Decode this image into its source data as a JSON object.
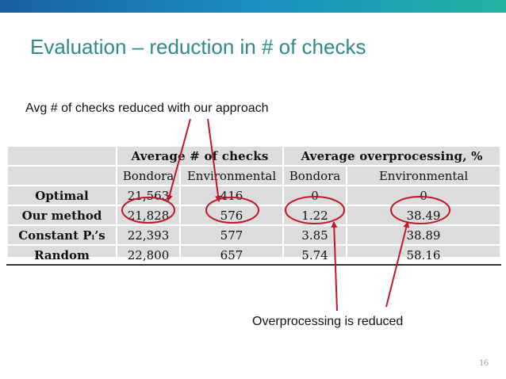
{
  "slide": {
    "title": "Evaluation – reduction in # of checks",
    "caption_checks": "Avg # of checks reduced with our approach",
    "caption_overprocessing": "Overprocessing is reduced",
    "slide_number": "16"
  },
  "table": {
    "group_headers": [
      "Average # of checks",
      "Average overprocessing, %"
    ],
    "sub_headers": [
      "Bondora",
      "Environmental",
      "Bondora",
      "Environmental"
    ],
    "rows": [
      {
        "label": "Optimal",
        "values": [
          "21,563",
          "416",
          "0",
          "0"
        ]
      },
      {
        "label": "Our method",
        "values": [
          "21,828",
          "576",
          "1.22",
          "38.49"
        ]
      },
      {
        "label": "Constant Pᵢ’s",
        "values": [
          "22,393",
          "577",
          "3.85",
          "38.89"
        ]
      },
      {
        "label": "Random",
        "values": [
          "22,800",
          "657",
          "5.74",
          "58.16"
        ]
      }
    ]
  },
  "colors": {
    "title": "#2e8b86",
    "annotation": "#c0182a",
    "topbar_start": "#1a5fa3",
    "topbar_end": "#22b3a1"
  }
}
